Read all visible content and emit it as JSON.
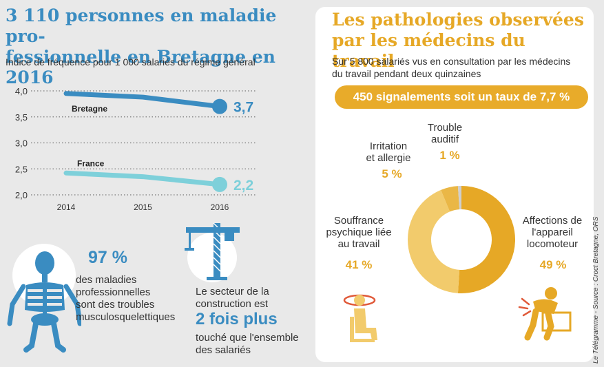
{
  "left_title": "3 110 personnes en maladie professionnelle en Bretagne en 2016",
  "left_title_line1": "3 110 personnes en maladie pro-",
  "left_title_line2": "fessionnelle en Bretagne en 2016",
  "left_subtitle": "Indice de fréquence pour 1 000 salariés du régime général",
  "chart_data": [
    {
      "type": "line",
      "x": [
        2014,
        2015,
        2016
      ],
      "x_tick_labels": [
        "2014",
        "2015",
        "2016"
      ],
      "y_tick_labels": [
        "4,0",
        "3,5",
        "3,0",
        "2,5",
        "2,0"
      ],
      "ylim": [
        2.0,
        4.0
      ],
      "series": [
        {
          "name": "Bretagne",
          "values": [
            3.95,
            3.88,
            3.7
          ],
          "end_label": "3,7",
          "color": "#3a8cc1"
        },
        {
          "name": "France",
          "values": [
            2.42,
            2.35,
            2.2
          ],
          "end_label": "2,2",
          "color": "#7ed0da"
        }
      ],
      "grid": "dotted-horizontal"
    },
    {
      "type": "pie",
      "donut": true,
      "title": "Les pathologies observées par les médecins du travail",
      "slices": [
        {
          "label": "Affections de l'appareil locomoteur",
          "value": 49,
          "display": "49 %",
          "color": "#e6a826"
        },
        {
          "label": "Souffrance psychique liée au travail",
          "value": 41,
          "display": "41 %",
          "color": "#f2cb6c"
        },
        {
          "label": "Irritation et allergie",
          "value": 5,
          "display": "5 %",
          "color": "#eab746"
        },
        {
          "label": "Trouble auditif",
          "value": 1,
          "display": "1 %",
          "color": "#cfcfcf"
        }
      ]
    }
  ],
  "stat1": {
    "value": "97 %",
    "line1": "des maladies",
    "line2": "professionnelles",
    "line3": "sont des troubles",
    "line4": "musculosquelettiques"
  },
  "stat2": {
    "line1": "Le secteur de la",
    "line2": "construction est",
    "value": "2 fois plus",
    "line3": "touché que l'ensemble",
    "line4": "des salariés"
  },
  "right_title_line1": "Les pathologies observées",
  "right_title_line2": "par les médecins du travail",
  "right_subtitle_line1": "Sur 5 800 salariés vus en consultation par les médecins",
  "right_subtitle_line2": "du travail pendant deux quinzaines",
  "pill_text": "450 signalements soit un taux de 7,7 %",
  "donut_labels": {
    "trouble": {
      "line1": "Trouble",
      "line2": "auditif",
      "pct": "1 %"
    },
    "irritation": {
      "line1": "Irritation",
      "line2": "et allergie",
      "pct": "5 %"
    },
    "souffrance": {
      "line1": "Souffrance",
      "line2": "psychique liée",
      "line3": "au travail",
      "pct": "41 %"
    },
    "affections": {
      "line1": "Affections de",
      "line2": "l'appareil",
      "line3": "locomoteur",
      "pct": "49 %"
    }
  },
  "credit": "Le Télégramme - Source : Croct Bretagne, ORS",
  "colors": {
    "blue": "#3a8cc1",
    "teal": "#7ed0da",
    "orange": "#e6a826"
  },
  "icons": [
    "skeleton-icon",
    "crane-icon",
    "stress-person-icon",
    "back-pain-icon"
  ]
}
